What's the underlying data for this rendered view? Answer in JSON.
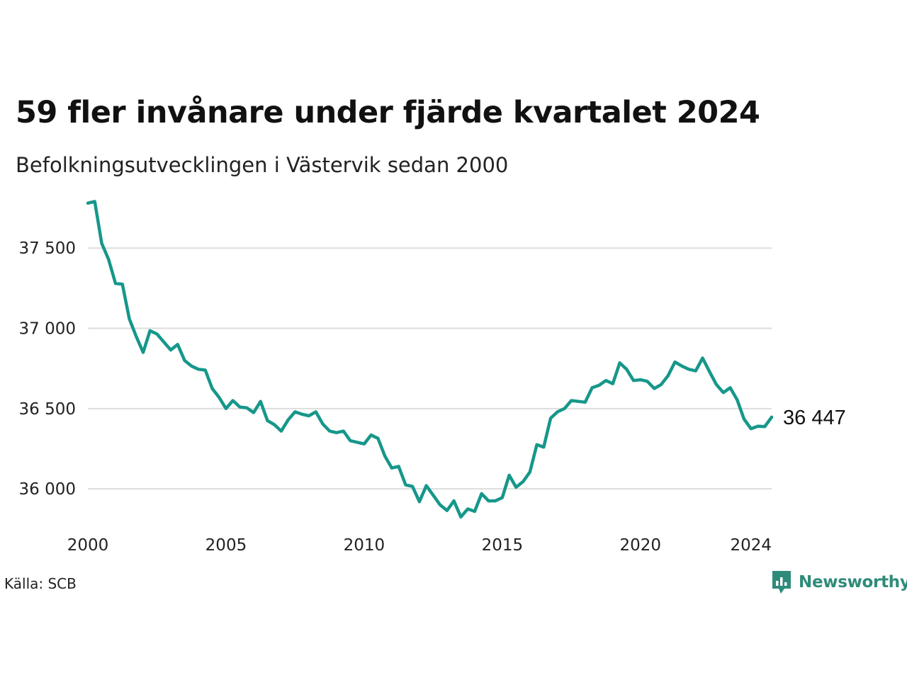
{
  "title": "59 fler invånare under fjärde kvartalet 2024",
  "subtitle": "Befolkningsutvecklingen i Västervik sedan 2000",
  "source": "Källa: SCB",
  "logo": {
    "icon": "newsworthy-logo-icon",
    "text": "Newsworthy"
  },
  "colors": {
    "line": "#16978a",
    "grid": "#dddddd",
    "logo": "#2e8b7a"
  },
  "chart_data": {
    "type": "line",
    "title": "59 fler invånare under fjärde kvartalet 2024",
    "subtitle": "Befolkningsutvecklingen i Västervik sedan 2000",
    "xlabel": "",
    "ylabel": "",
    "xlim": [
      2000,
      2024.75
    ],
    "ylim": [
      35780,
      37810
    ],
    "y_ticks": [
      36000,
      36500,
      37000,
      37500
    ],
    "y_tick_labels": [
      "36 000",
      "36 500",
      "37 000",
      "37 500"
    ],
    "x_ticks": [
      2000,
      2005,
      2010,
      2015,
      2020,
      2024
    ],
    "x_tick_labels": [
      "2000",
      "2005",
      "2010",
      "2015",
      "2020",
      "2024"
    ],
    "grid": "horizontal",
    "end_label": "36 447",
    "series": [
      {
        "x": [
          "2000-03",
          "2000-06",
          "2000-09",
          "2000-12",
          "2001-03",
          "2001-06",
          "2001-09",
          "2001-12",
          "2002-03",
          "2002-06",
          "2002-09",
          "2002-12",
          "2003-03",
          "2003-06",
          "2003-09",
          "2003-12",
          "2004-03",
          "2004-06",
          "2004-09",
          "2004-12",
          "2005-03",
          "2005-06",
          "2005-09",
          "2005-12",
          "2006-03",
          "2006-06",
          "2006-09",
          "2006-12",
          "2007-03",
          "2007-06",
          "2007-09",
          "2007-12",
          "2008-03",
          "2008-06",
          "2008-09",
          "2008-12",
          "2009-03",
          "2009-06",
          "2009-09",
          "2009-12",
          "2010-03",
          "2010-06",
          "2010-09",
          "2010-12",
          "2011-03",
          "2011-06",
          "2011-09",
          "2011-12",
          "2012-03",
          "2012-06",
          "2012-09",
          "2012-12",
          "2013-03",
          "2013-06",
          "2013-09",
          "2013-12",
          "2014-03",
          "2014-06",
          "2014-09",
          "2014-12",
          "2015-03",
          "2015-06",
          "2015-09",
          "2015-12",
          "2016-03",
          "2016-06",
          "2016-09",
          "2016-12",
          "2017-03",
          "2017-06",
          "2017-09",
          "2017-12",
          "2018-03",
          "2018-06",
          "2018-09",
          "2018-12",
          "2019-03",
          "2019-06",
          "2019-09",
          "2019-12",
          "2020-03",
          "2020-06",
          "2020-09",
          "2020-12",
          "2021-03",
          "2021-06",
          "2021-09",
          "2021-12",
          "2022-03",
          "2022-06",
          "2022-09",
          "2022-12",
          "2023-03",
          "2023-06",
          "2023-09",
          "2023-12",
          "2024-03",
          "2024-06",
          "2024-09",
          "2024-12"
        ],
        "values": [
          37780,
          37790,
          37530,
          37430,
          37280,
          37275,
          37060,
          36950,
          36850,
          36985,
          36965,
          36915,
          36865,
          36900,
          36800,
          36765,
          36745,
          36740,
          36625,
          36570,
          36500,
          36550,
          36510,
          36505,
          36475,
          36545,
          36425,
          36400,
          36360,
          36430,
          36480,
          36465,
          36455,
          36480,
          36405,
          36360,
          36350,
          36360,
          36300,
          36290,
          36280,
          36335,
          36315,
          36205,
          36130,
          36140,
          36025,
          36015,
          35920,
          36020,
          35960,
          35900,
          35865,
          35925,
          35825,
          35875,
          35860,
          35970,
          35925,
          35925,
          35945,
          36085,
          36010,
          36045,
          36105,
          36275,
          36260,
          36440,
          36480,
          36500,
          36550,
          36545,
          36540,
          36630,
          36645,
          36675,
          36655,
          36785,
          36745,
          36675,
          36680,
          36670,
          36625,
          36650,
          36705,
          36790,
          36765,
          36745,
          36735,
          36815,
          36730,
          36650,
          36600,
          36630,
          36555,
          36435,
          36375,
          36390,
          36388,
          36447
        ]
      }
    ]
  }
}
